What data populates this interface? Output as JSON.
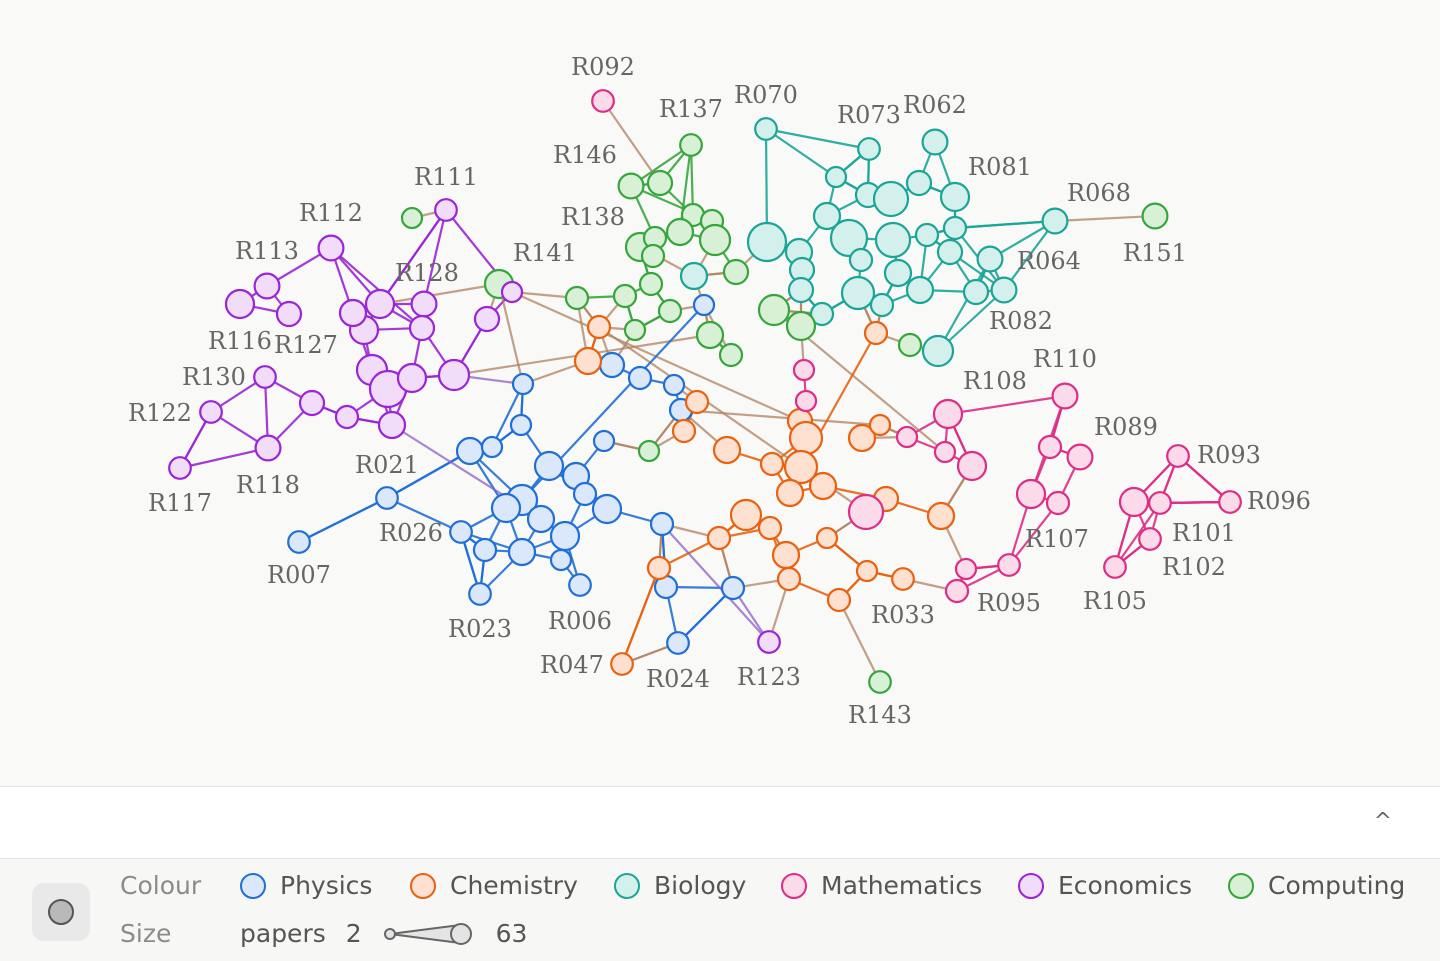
{
  "legend": {
    "colour_label": "Colour",
    "size_label": "Size",
    "size_metric": "papers",
    "size_min": "2",
    "size_max": "63",
    "groups": [
      {
        "name": "Physics",
        "color": "#1f6fd6",
        "fill": "#dbe8fb"
      },
      {
        "name": "Chemistry",
        "color": "#e8620f",
        "fill": "#fde0d0"
      },
      {
        "name": "Biology",
        "color": "#1aa597",
        "fill": "#d4f0ec"
      },
      {
        "name": "Mathematics",
        "color": "#dd2d86",
        "fill": "#fbdbe9"
      },
      {
        "name": "Economics",
        "color": "#9a24d6",
        "fill": "#f1dcfa"
      },
      {
        "name": "Computing",
        "color": "#35a63c",
        "fill": "#d8f0d5"
      }
    ]
  },
  "footer": {
    "collapse_icon": "^"
  },
  "graph": {
    "nodes": [
      {
        "id": "R092",
        "group": "Mathematics",
        "size": 3
      },
      {
        "id": "R137",
        "group": "Computing",
        "size": 3
      },
      {
        "id": "R070",
        "group": "Biology",
        "size": 3
      },
      {
        "id": "R073",
        "group": "Biology",
        "size": 3
      },
      {
        "id": "R062",
        "group": "Biology",
        "size": 4
      },
      {
        "id": "R081",
        "group": "Biology",
        "size": 5
      },
      {
        "id": "R068",
        "group": "Biology",
        "size": 4
      },
      {
        "id": "R151",
        "group": "Computing",
        "size": 4
      },
      {
        "id": "R064",
        "group": "Biology",
        "size": 4
      },
      {
        "id": "R082",
        "group": "Biology",
        "size": 4
      },
      {
        "id": "R146",
        "group": "Computing",
        "size": 4
      },
      {
        "id": "R138",
        "group": "Computing",
        "size": 5
      },
      {
        "id": "R141",
        "group": "Computing",
        "size": 5
      },
      {
        "id": "R111",
        "group": "Economics",
        "size": 3
      },
      {
        "id": "R112",
        "group": "Economics",
        "size": 4
      },
      {
        "id": "R113",
        "group": "Economics",
        "size": 4
      },
      {
        "id": "R128",
        "group": "Economics",
        "size": 4
      },
      {
        "id": "R116",
        "group": "Economics",
        "size": 5
      },
      {
        "id": "R127",
        "group": "Economics",
        "size": 5
      },
      {
        "id": "R130",
        "group": "Economics",
        "size": 3
      },
      {
        "id": "R122",
        "group": "Economics",
        "size": 3
      },
      {
        "id": "R117",
        "group": "Economics",
        "size": 3
      },
      {
        "id": "R118",
        "group": "Economics",
        "size": 4
      },
      {
        "id": "R021",
        "group": "Physics",
        "size": 3
      },
      {
        "id": "R026",
        "group": "Physics",
        "size": 3
      },
      {
        "id": "R007",
        "group": "Physics",
        "size": 3
      },
      {
        "id": "R023",
        "group": "Physics",
        "size": 3
      },
      {
        "id": "R006",
        "group": "Physics",
        "size": 3
      },
      {
        "id": "R047",
        "group": "Chemistry",
        "size": 3
      },
      {
        "id": "R024",
        "group": "Physics",
        "size": 3
      },
      {
        "id": "R123",
        "group": "Economics",
        "size": 3
      },
      {
        "id": "R143",
        "group": "Computing",
        "size": 3
      },
      {
        "id": "R033",
        "group": "Chemistry",
        "size": 3
      },
      {
        "id": "R095",
        "group": "Mathematics",
        "size": 3
      },
      {
        "id": "R105",
        "group": "Mathematics",
        "size": 3
      },
      {
        "id": "R107",
        "group": "Mathematics",
        "size": 5
      },
      {
        "id": "R102",
        "group": "Mathematics",
        "size": 3
      },
      {
        "id": "R101",
        "group": "Mathematics",
        "size": 3
      },
      {
        "id": "R096",
        "group": "Mathematics",
        "size": 3
      },
      {
        "id": "R093",
        "group": "Mathematics",
        "size": 3
      },
      {
        "id": "R089",
        "group": "Mathematics",
        "size": 4
      },
      {
        "id": "R110",
        "group": "Mathematics",
        "size": 4
      },
      {
        "id": "R108",
        "group": "Mathematics",
        "size": 5
      }
    ]
  }
}
